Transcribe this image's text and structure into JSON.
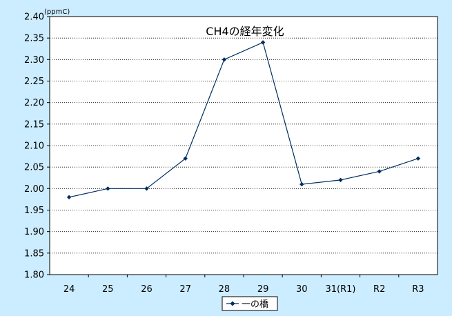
{
  "chart_data": {
    "type": "line",
    "title": "CH4の経年変化",
    "unit_label": "(ppmC)",
    "categories": [
      "24",
      "25",
      "26",
      "27",
      "28",
      "29",
      "30",
      "31(R1)",
      "R2",
      "R3"
    ],
    "series": [
      {
        "name": "一の橋",
        "values": [
          1.98,
          2.0,
          2.0,
          2.07,
          2.3,
          2.34,
          2.01,
          2.02,
          2.04,
          2.07
        ],
        "color": "#002d5f"
      }
    ],
    "ylim": [
      1.8,
      2.4
    ],
    "yticks": [
      "1.80",
      "1.85",
      "1.90",
      "1.95",
      "2.00",
      "2.05",
      "2.10",
      "2.15",
      "2.20",
      "2.25",
      "2.30",
      "2.35",
      "2.40"
    ],
    "grid": true,
    "legend_position": "bottom-center",
    "colors": {
      "background": "#ccecff",
      "plot_area": "#ffffff",
      "line": "#002d5f"
    }
  }
}
